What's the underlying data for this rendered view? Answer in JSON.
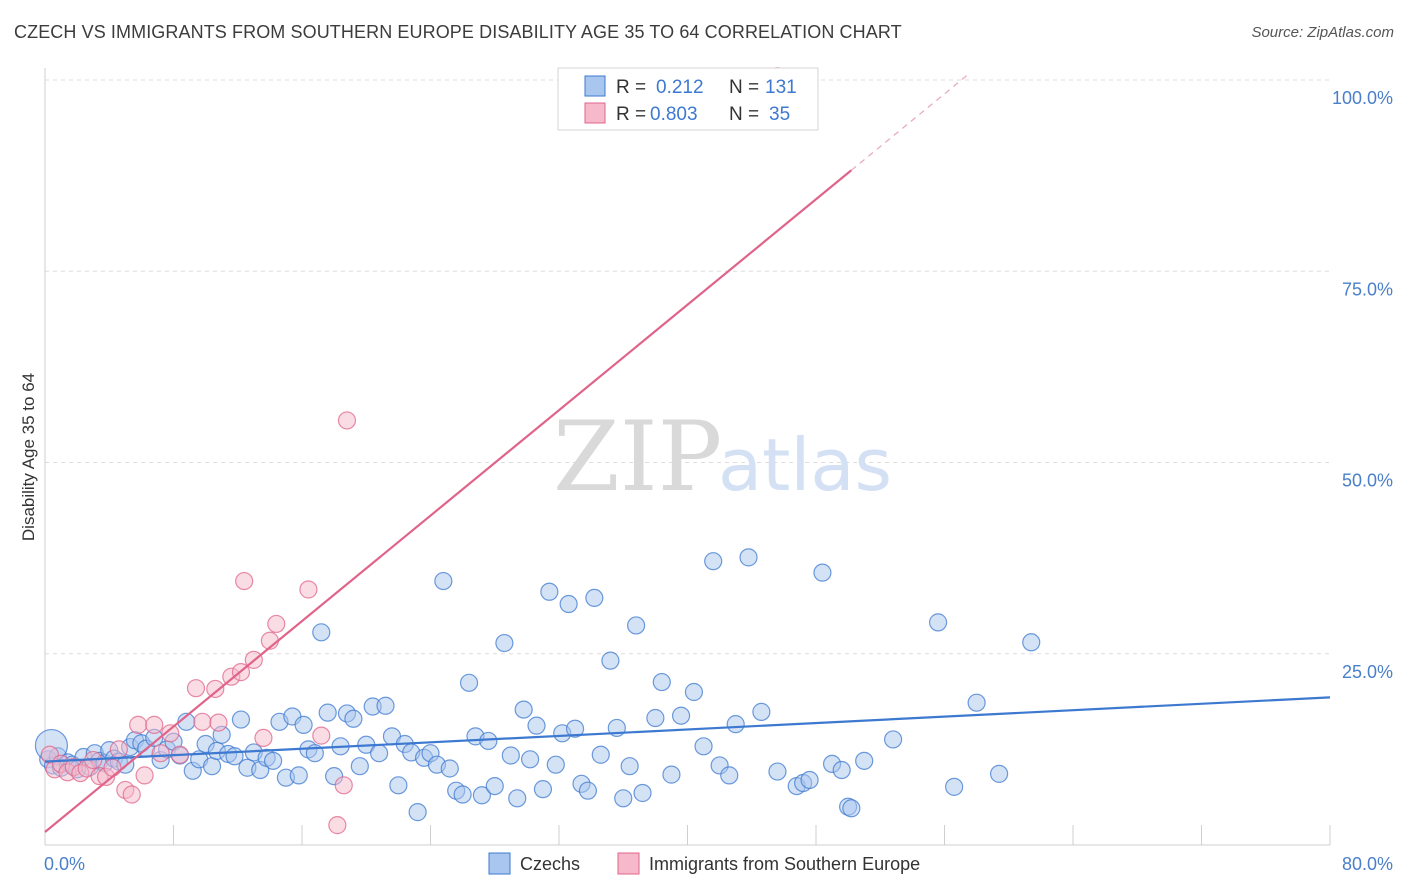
{
  "title": "CZECH VS IMMIGRANTS FROM SOUTHERN EUROPE DISABILITY AGE 35 TO 64 CORRELATION CHART",
  "source": "Source: ZipAtlas.com",
  "watermark": {
    "zip": "ZIP",
    "atlas": "atlas"
  },
  "colors": {
    "blue": "#3d79d0",
    "blue_fill": "#a9c6ee",
    "pink": "#e0648a",
    "pink_fill": "#f6b9cc",
    "tick": "#4a7fc9",
    "grid": "#dddddd"
  },
  "legend": {
    "r_label": "R =",
    "n_label": "N =",
    "entries": [
      {
        "r": "0.212",
        "n": "131"
      },
      {
        "r": "0.803",
        "n": "35"
      }
    ]
  },
  "chart_data": {
    "type": "scatter",
    "title": "CZECH VS IMMIGRANTS FROM SOUTHERN EUROPE DISABILITY AGE 35 TO 64 CORRELATION CHART",
    "xlabel": "",
    "ylabel": "Disability Age 35 to 64",
    "xlim": [
      0,
      80
    ],
    "ylim": [
      0,
      100
    ],
    "x_tick_labels": [
      "0.0%",
      "80.0%"
    ],
    "y_ticks": [
      25,
      50,
      75,
      100
    ],
    "y_tick_labels": [
      "25.0%",
      "50.0%",
      "75.0%",
      "100.0%"
    ],
    "grid": true,
    "legend_position": "bottom",
    "series": [
      {
        "name": "Czechs",
        "r": 0.212,
        "n": 131,
        "trend": {
          "x": [
            0,
            80
          ],
          "y": [
            10.9,
            19.3
          ]
        },
        "points": [
          [
            0.2,
            11.2
          ],
          [
            0.5,
            10.4
          ],
          [
            0.8,
            11.6
          ],
          [
            1.0,
            10.1
          ],
          [
            1.4,
            10.8
          ],
          [
            1.7,
            10.5
          ],
          [
            2.0,
            9.9
          ],
          [
            2.4,
            11.5
          ],
          [
            2.8,
            10.2
          ],
          [
            3.1,
            12.0
          ],
          [
            3.4,
            11.0
          ],
          [
            3.7,
            10.7
          ],
          [
            4.0,
            12.4
          ],
          [
            4.3,
            11.3
          ],
          [
            4.6,
            10.9
          ],
          [
            5.0,
            10.5
          ],
          [
            5.3,
            12.8
          ],
          [
            5.6,
            13.7
          ],
          [
            6.0,
            13.3
          ],
          [
            6.3,
            12.6
          ],
          [
            6.8,
            14.0
          ],
          [
            7.2,
            11.1
          ],
          [
            7.6,
            12.5
          ],
          [
            8.0,
            13.5
          ],
          [
            8.4,
            11.7
          ],
          [
            8.8,
            16.1
          ],
          [
            9.2,
            9.7
          ],
          [
            9.6,
            11.2
          ],
          [
            10.0,
            13.2
          ],
          [
            10.4,
            10.3
          ],
          [
            10.7,
            12.3
          ],
          [
            11.0,
            14.4
          ],
          [
            11.4,
            11.9
          ],
          [
            11.8,
            11.6
          ],
          [
            12.2,
            16.4
          ],
          [
            12.6,
            10.1
          ],
          [
            13.0,
            12.1
          ],
          [
            13.4,
            9.8
          ],
          [
            13.8,
            11.4
          ],
          [
            14.2,
            11.0
          ],
          [
            14.6,
            16.1
          ],
          [
            15.0,
            8.8
          ],
          [
            15.4,
            16.8
          ],
          [
            15.8,
            9.1
          ],
          [
            16.1,
            15.7
          ],
          [
            16.4,
            12.5
          ],
          [
            16.8,
            12.0
          ],
          [
            17.2,
            27.8
          ],
          [
            17.6,
            17.3
          ],
          [
            18.0,
            9.0
          ],
          [
            18.4,
            12.9
          ],
          [
            18.8,
            17.2
          ],
          [
            19.2,
            16.5
          ],
          [
            19.6,
            10.3
          ],
          [
            20.0,
            13.1
          ],
          [
            20.4,
            18.1
          ],
          [
            20.8,
            12.0
          ],
          [
            21.2,
            18.2
          ],
          [
            21.6,
            14.2
          ],
          [
            22.0,
            7.8
          ],
          [
            22.4,
            13.2
          ],
          [
            22.8,
            12.1
          ],
          [
            23.2,
            4.3
          ],
          [
            23.6,
            11.4
          ],
          [
            24.0,
            12.0
          ],
          [
            24.4,
            10.5
          ],
          [
            24.8,
            34.5
          ],
          [
            25.2,
            10.0
          ],
          [
            25.6,
            7.1
          ],
          [
            26.0,
            6.6
          ],
          [
            26.4,
            21.2
          ],
          [
            26.8,
            14.2
          ],
          [
            27.2,
            6.5
          ],
          [
            27.6,
            13.6
          ],
          [
            28.0,
            7.7
          ],
          [
            28.6,
            26.4
          ],
          [
            29.0,
            11.7
          ],
          [
            29.4,
            6.1
          ],
          [
            29.8,
            17.7
          ],
          [
            30.2,
            11.2
          ],
          [
            30.6,
            15.6
          ],
          [
            31.0,
            7.3
          ],
          [
            31.4,
            33.1
          ],
          [
            31.8,
            10.5
          ],
          [
            32.2,
            14.6
          ],
          [
            32.6,
            31.5
          ],
          [
            33.0,
            15.2
          ],
          [
            33.4,
            8.0
          ],
          [
            33.8,
            7.1
          ],
          [
            34.2,
            32.3
          ],
          [
            34.6,
            11.8
          ],
          [
            35.2,
            24.1
          ],
          [
            35.6,
            15.3
          ],
          [
            36.0,
            6.1
          ],
          [
            36.4,
            10.3
          ],
          [
            36.8,
            28.7
          ],
          [
            37.2,
            6.8
          ],
          [
            38.0,
            16.6
          ],
          [
            38.4,
            21.3
          ],
          [
            39.0,
            9.2
          ],
          [
            39.6,
            16.9
          ],
          [
            40.4,
            20.0
          ],
          [
            41.0,
            12.9
          ],
          [
            41.6,
            37.1
          ],
          [
            42.0,
            10.4
          ],
          [
            42.6,
            9.1
          ],
          [
            43.0,
            15.8
          ],
          [
            43.8,
            37.6
          ],
          [
            44.6,
            17.4
          ],
          [
            45.6,
            9.6
          ],
          [
            46.8,
            7.7
          ],
          [
            47.2,
            8.1
          ],
          [
            47.6,
            8.5
          ],
          [
            48.4,
            35.6
          ],
          [
            49.0,
            10.6
          ],
          [
            49.6,
            9.8
          ],
          [
            50.0,
            5.0
          ],
          [
            50.2,
            4.8
          ],
          [
            51.0,
            11.0
          ],
          [
            52.8,
            13.8
          ],
          [
            55.6,
            29.1
          ],
          [
            56.6,
            7.6
          ],
          [
            58.0,
            18.6
          ],
          [
            59.4,
            9.3
          ],
          [
            61.4,
            26.5
          ],
          [
            0.4,
            13.0
          ]
        ]
      },
      {
        "name": "Immigrants from Southern Europe",
        "r": 0.803,
        "n": 35,
        "trend": {
          "x": [
            0,
            50.2
          ],
          "y": [
            1.7,
            88.2
          ]
        },
        "trend_dashed": {
          "x": [
            50.2,
            57.4
          ],
          "y": [
            88.2,
            100.6
          ]
        },
        "points": [
          [
            0.3,
            11.8
          ],
          [
            0.6,
            9.9
          ],
          [
            1.0,
            10.6
          ],
          [
            1.4,
            9.5
          ],
          [
            1.8,
            10.2
          ],
          [
            2.2,
            9.4
          ],
          [
            2.6,
            10.0
          ],
          [
            3.0,
            11.1
          ],
          [
            3.4,
            9.0
          ],
          [
            3.8,
            8.9
          ],
          [
            4.2,
            10.1
          ],
          [
            4.6,
            12.5
          ],
          [
            5.0,
            7.2
          ],
          [
            5.4,
            6.6
          ],
          [
            5.8,
            15.7
          ],
          [
            6.2,
            9.1
          ],
          [
            6.8,
            15.7
          ],
          [
            7.2,
            12.0
          ],
          [
            7.8,
            14.6
          ],
          [
            8.4,
            11.8
          ],
          [
            9.4,
            20.5
          ],
          [
            9.8,
            16.1
          ],
          [
            10.6,
            20.4
          ],
          [
            10.8,
            16.0
          ],
          [
            11.6,
            22.0
          ],
          [
            12.2,
            22.6
          ],
          [
            12.4,
            34.5
          ],
          [
            13.0,
            24.2
          ],
          [
            13.6,
            14.0
          ],
          [
            14.0,
            26.7
          ],
          [
            14.4,
            28.9
          ],
          [
            16.4,
            33.4
          ],
          [
            17.2,
            14.3
          ],
          [
            18.2,
            2.6
          ],
          [
            18.6,
            7.8
          ],
          [
            18.8,
            55.5
          ],
          [
            45.6,
            100.5
          ]
        ]
      }
    ]
  }
}
